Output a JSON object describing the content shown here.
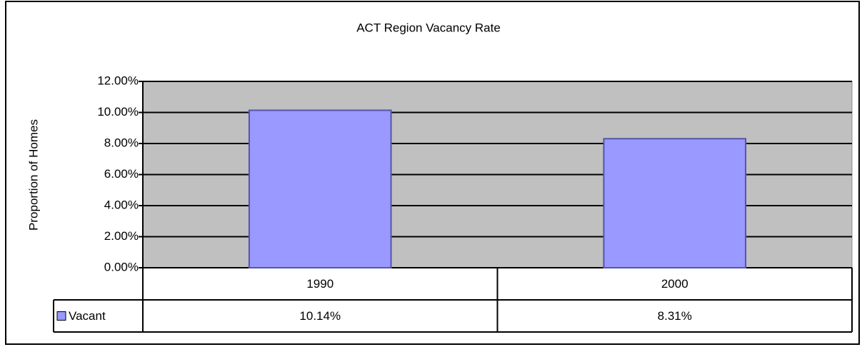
{
  "chart_data": {
    "type": "bar",
    "title": "ACT Region Vacancy Rate",
    "y_label": "Proportion of Homes",
    "categories": [
      "1990",
      "2000"
    ],
    "series": [
      {
        "name": "Vacant",
        "color": "#9999ff",
        "values": [
          10.14,
          8.31
        ],
        "value_labels": [
          "10.14%",
          "8.31%"
        ]
      }
    ],
    "ylim": [
      0,
      12
    ],
    "yticks": [
      {
        "value": 0,
        "label": "0.00%"
      },
      {
        "value": 2,
        "label": "2.00%"
      },
      {
        "value": 4,
        "label": "4.00%"
      },
      {
        "value": 6,
        "label": "6.00%"
      },
      {
        "value": 8,
        "label": "8.00%"
      },
      {
        "value": 10,
        "label": "10.00%"
      },
      {
        "value": 12,
        "label": "12.00%"
      }
    ],
    "grid": true,
    "plot_background": "#c0c0c0"
  }
}
